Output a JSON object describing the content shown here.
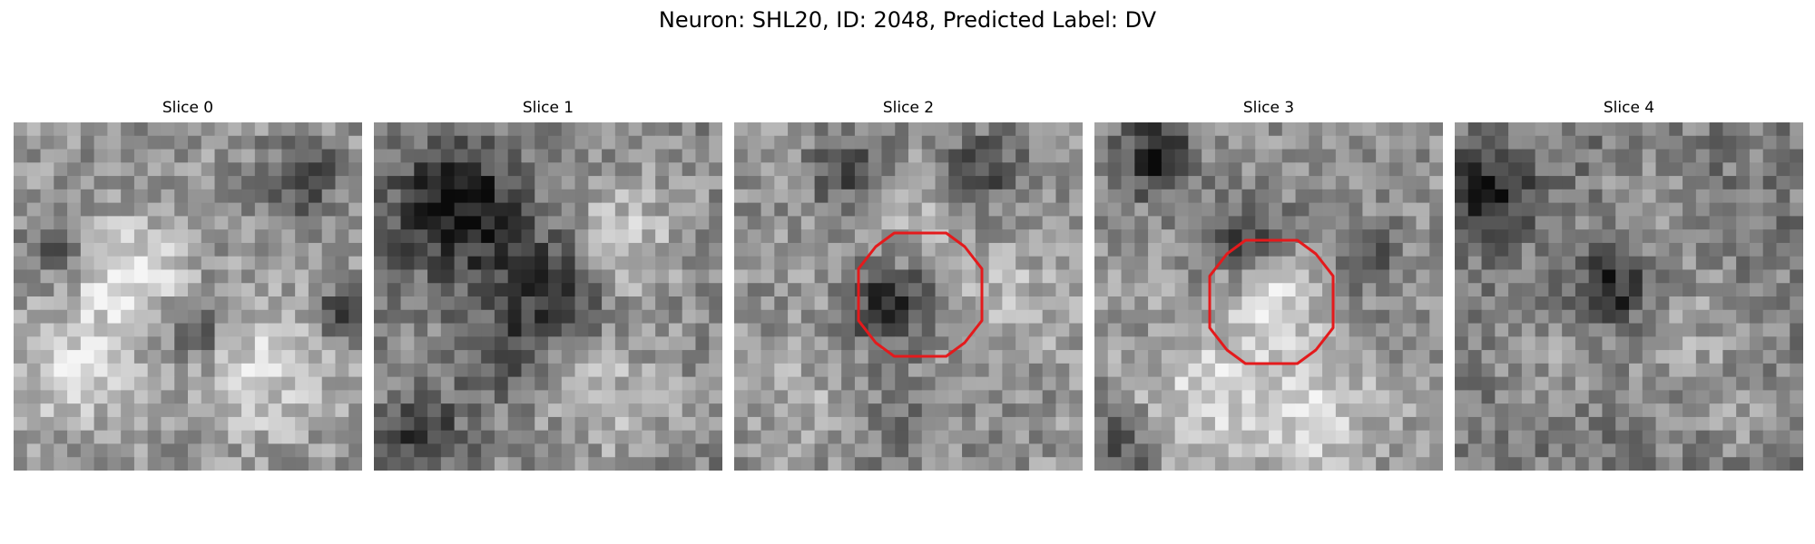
{
  "figure": {
    "title": "Neuron: SHL20, ID: 2048, Predicted Label: DV",
    "roi_color": "#e41a1c"
  },
  "slices": [
    {
      "title": "Slice 0",
      "has_roi": false
    },
    {
      "title": "Slice 1",
      "has_roi": false
    },
    {
      "title": "Slice 2",
      "has_roi": true
    },
    {
      "title": "Slice 3",
      "has_roi": true
    },
    {
      "title": "Slice 4",
      "has_roi": false
    }
  ]
}
